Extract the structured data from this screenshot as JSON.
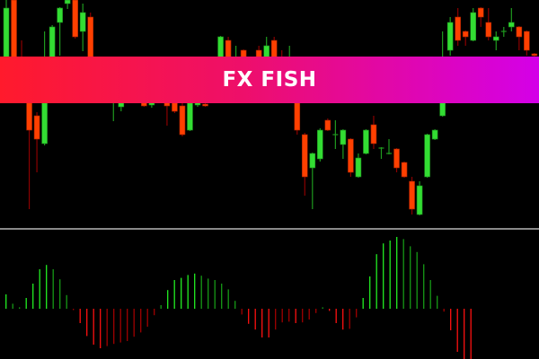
{
  "banner": {
    "title": "FX FISH"
  },
  "colors": {
    "background": "#000000",
    "bull_body": "#33dd33",
    "bull_wick": "#1f9a1f",
    "bear_body": "#ff4000",
    "bear_wick": "#8b0000",
    "hist_up_strong": "#22ee22",
    "hist_up_weak": "#169a16",
    "hist_down_strong": "#ff1010",
    "hist_down_weak": "#a00000",
    "separator": "#8a8a8a"
  },
  "chart_data": [
    {
      "type": "candlestick",
      "columns": [
        "bar",
        "open",
        "high",
        "low",
        "close"
      ],
      "candles": [
        [
          0,
          170,
          250,
          165,
          241
        ],
        [
          1,
          250,
          250,
          172,
          175
        ],
        [
          2,
          180,
          205,
          170,
          176
        ],
        [
          3,
          150,
          152,
          17,
          105
        ],
        [
          4,
          121,
          125,
          58,
          95
        ],
        [
          5,
          90,
          215,
          88,
          140
        ],
        [
          6,
          170,
          222,
          168,
          220
        ],
        [
          7,
          225,
          242,
          188,
          241
        ],
        [
          8,
          246,
          250,
          240,
          250
        ],
        [
          9,
          250,
          250,
          207,
          209
        ],
        [
          10,
          215,
          246,
          193,
          236
        ],
        [
          11,
          231,
          236,
          170,
          172
        ],
        [
          14,
          140,
          150,
          115,
          145
        ],
        [
          15,
          131,
          145,
          126,
          140
        ],
        [
          18,
          140,
          142,
          131,
          132
        ],
        [
          19,
          133,
          138,
          130,
          136
        ],
        [
          21,
          138,
          140,
          110,
          132
        ],
        [
          22,
          140,
          142,
          124,
          126
        ],
        [
          23,
          132,
          135,
          98,
          100
        ],
        [
          24,
          105,
          142,
          104,
          140
        ],
        [
          25,
          133,
          138,
          131,
          136
        ],
        [
          26,
          134,
          136,
          131,
          132
        ],
        [
          28,
          170,
          210,
          168,
          209
        ],
        [
          29,
          205,
          209,
          170,
          172
        ],
        [
          30,
          175,
          199,
          172,
          180
        ],
        [
          31,
          194,
          195,
          170,
          172
        ],
        [
          33,
          194,
          199,
          170,
          172
        ],
        [
          34,
          170,
          209,
          168,
          199
        ],
        [
          35,
          205,
          209,
          170,
          172
        ],
        [
          36,
          180,
          194,
          174,
          176
        ],
        [
          37,
          176,
          199,
          174,
          180
        ],
        [
          38,
          160,
          162,
          100,
          105
        ],
        [
          39,
          100,
          102,
          32,
          53
        ],
        [
          40,
          63,
          80,
          17,
          79
        ],
        [
          41,
          73,
          107,
          70,
          105
        ],
        [
          42,
          116,
          118,
          104,
          105
        ],
        [
          43,
          100,
          116,
          84,
          100
        ],
        [
          44,
          89,
          106,
          73,
          105
        ],
        [
          45,
          95,
          96,
          53,
          58
        ],
        [
          46,
          53,
          79,
          52,
          74
        ],
        [
          47,
          79,
          106,
          78,
          105
        ],
        [
          48,
          111,
          121,
          84,
          90
        ],
        [
          49,
          85,
          86,
          73,
          85
        ],
        [
          50,
          79,
          95,
          78,
          79
        ],
        [
          51,
          84,
          85,
          58,
          63
        ],
        [
          52,
          69,
          70,
          52,
          53
        ],
        [
          53,
          48,
          53,
          11,
          17
        ],
        [
          54,
          11,
          48,
          10,
          43
        ],
        [
          55,
          53,
          101,
          52,
          100
        ],
        [
          56,
          95,
          106,
          94,
          105
        ],
        [
          57,
          121,
          215,
          120,
          170
        ],
        [
          58,
          194,
          231,
          188,
          225
        ],
        [
          59,
          231,
          241,
          199,
          205
        ],
        [
          60,
          215,
          216,
          199,
          209
        ],
        [
          61,
          205,
          241,
          204,
          236
        ],
        [
          62,
          241,
          242,
          220,
          231
        ],
        [
          63,
          225,
          241,
          205,
          209
        ],
        [
          64,
          205,
          215,
          194,
          209
        ],
        [
          65,
          215,
          220,
          209,
          215
        ],
        [
          66,
          220,
          241,
          215,
          225
        ],
        [
          67,
          220,
          221,
          194,
          209
        ],
        [
          68,
          215,
          216,
          188,
          194
        ],
        [
          69,
          190,
          191,
          186,
          188
        ]
      ]
    },
    {
      "type": "bar",
      "subtype": "oscillator-histogram",
      "baseline": 0,
      "values": [
        0.2,
        0.07,
        0.02,
        0.15,
        0.35,
        0.55,
        0.61,
        0.55,
        0.41,
        0.19,
        -0.01,
        -0.2,
        -0.38,
        -0.5,
        -0.55,
        -0.52,
        -0.49,
        -0.47,
        -0.45,
        -0.39,
        -0.33,
        -0.25,
        -0.09,
        0.05,
        0.26,
        0.4,
        0.43,
        0.47,
        0.49,
        0.46,
        0.42,
        0.4,
        0.35,
        0.27,
        0.11,
        -0.08,
        -0.21,
        -0.29,
        -0.4,
        -0.4,
        -0.29,
        -0.19,
        -0.18,
        -0.2,
        -0.19,
        -0.15,
        -0.06,
        0.02,
        -0.03,
        -0.2,
        -0.29,
        -0.28,
        -0.12,
        0.15,
        0.45,
        0.76,
        0.91,
        0.95,
        1.0,
        0.97,
        0.87,
        0.79,
        0.62,
        0.4,
        0.18,
        -0.04,
        -0.3,
        -0.6,
        -0.71,
        -0.71
      ]
    }
  ]
}
